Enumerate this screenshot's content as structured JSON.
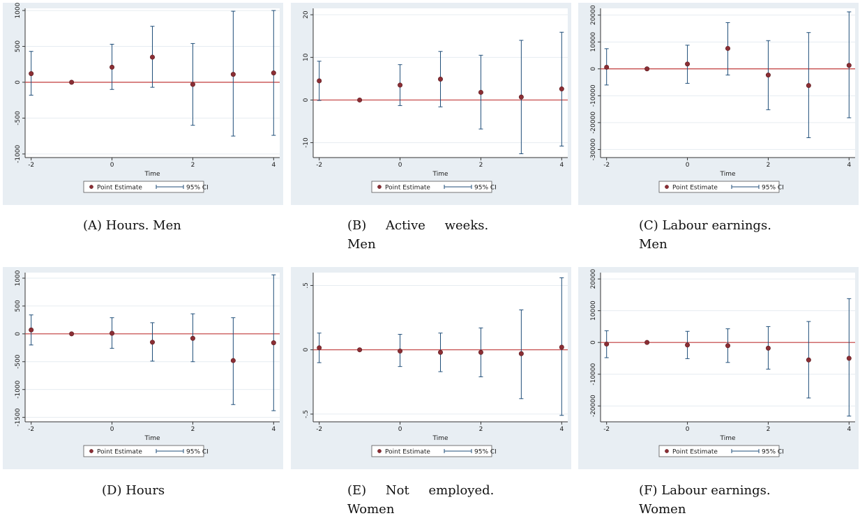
{
  "style": {
    "outer_bg": "#e8eef3",
    "plot_bg": "#ffffff",
    "grid": "#e6ecf1",
    "zero_line": "#c23b3b",
    "ci_line": "#1f4e79",
    "point": "#8b2e34",
    "point_edge": "#5a1a1f"
  },
  "legend": {
    "point_label": "Point Estimate",
    "ci_label": "95% CI"
  },
  "chart_data": [
    {
      "type": "scatter",
      "caption": "(A) Hours. Men",
      "xlabel": "Time",
      "x_ticks": [
        -2,
        0,
        2,
        4
      ],
      "y_ticks": [
        -1000,
        -500,
        0,
        500,
        1000
      ],
      "y_tick_labels": [
        "-1000",
        "-500",
        "0",
        "500",
        "1000"
      ],
      "ylim": [
        -1050,
        1030
      ],
      "x": [
        -2,
        -1,
        0,
        1,
        2,
        3,
        4
      ],
      "estimate": [
        120,
        0,
        210,
        350,
        -30,
        110,
        130
      ],
      "ci_low": [
        -180,
        null,
        -100,
        -70,
        -600,
        -750,
        -740
      ],
      "ci_high": [
        430,
        null,
        530,
        780,
        540,
        990,
        1000
      ],
      "grid": true
    },
    {
      "type": "scatter",
      "caption": "(B) Active weeks. Men",
      "xlabel": "Time",
      "x_ticks": [
        -2,
        0,
        2,
        4
      ],
      "y_ticks": [
        -10,
        0,
        10,
        20
      ],
      "y_tick_labels": [
        "-10",
        "0",
        "10",
        "20"
      ],
      "ylim": [
        -13.5,
        21.5
      ],
      "x": [
        -2,
        -1,
        0,
        1,
        2,
        3,
        4
      ],
      "estimate": [
        4.5,
        0,
        3.5,
        4.9,
        1.8,
        0.7,
        2.6
      ],
      "ci_low": [
        -0.1,
        null,
        -1.3,
        -1.6,
        -6.8,
        -12.6,
        -10.8
      ],
      "ci_high": [
        9.1,
        null,
        8.3,
        11.4,
        10.5,
        14.0,
        15.9
      ],
      "grid": true
    },
    {
      "type": "scatter",
      "caption": "(C) Labour earnings. Men",
      "xlabel": "Time",
      "x_ticks": [
        -2,
        0,
        2,
        4
      ],
      "y_ticks": [
        -30000,
        -20000,
        -10000,
        0,
        10000,
        20000
      ],
      "y_tick_labels": [
        "-30000",
        "-20000",
        "-10000",
        "0",
        "10000",
        "20000"
      ],
      "ylim": [
        -33000,
        22500
      ],
      "x": [
        -2,
        -1,
        0,
        1,
        2,
        3,
        4
      ],
      "estimate": [
        600,
        0,
        1800,
        7600,
        -2300,
        -6200,
        1300
      ],
      "ci_low": [
        -6000,
        null,
        -5400,
        -2300,
        -15200,
        -25600,
        -18200
      ],
      "ci_high": [
        7500,
        null,
        8800,
        17200,
        10500,
        13500,
        21200
      ],
      "grid": true
    },
    {
      "type": "scatter",
      "caption": "(D) Hours",
      "xlabel": "Time",
      "x_ticks": [
        -2,
        0,
        2,
        4
      ],
      "y_ticks": [
        -1500,
        -1000,
        -500,
        0,
        500,
        1000
      ],
      "y_tick_labels": [
        "-1500",
        "-1000",
        "-500",
        "0",
        "500",
        "1000"
      ],
      "ylim": [
        -1580,
        1100
      ],
      "x": [
        -2,
        -1,
        0,
        1,
        2,
        3,
        4
      ],
      "estimate": [
        70,
        0,
        10,
        -150,
        -80,
        -480,
        -160
      ],
      "ci_low": [
        -200,
        null,
        -260,
        -490,
        -500,
        -1270,
        -1380
      ],
      "ci_high": [
        340,
        null,
        290,
        200,
        360,
        290,
        1060
      ],
      "grid": true
    },
    {
      "type": "scatter",
      "caption": "(E) Not employed. Women",
      "xlabel": "Time",
      "x_ticks": [
        -2,
        0,
        2,
        4
      ],
      "y_ticks": [
        -0.5,
        0,
        0.5
      ],
      "y_tick_labels": [
        "-.5",
        "0",
        ".5"
      ],
      "ylim": [
        -0.56,
        0.6
      ],
      "x": [
        -2,
        -1,
        0,
        1,
        2,
        3,
        4
      ],
      "estimate": [
        0.015,
        0,
        -0.01,
        -0.02,
        -0.02,
        -0.03,
        0.02
      ],
      "ci_low": [
        -0.1,
        null,
        -0.13,
        -0.17,
        -0.21,
        -0.38,
        -0.51
      ],
      "ci_high": [
        0.13,
        null,
        0.12,
        0.13,
        0.17,
        0.31,
        0.56
      ],
      "grid": true
    },
    {
      "type": "scatter",
      "caption": "(F) Labour earnings. Women",
      "xlabel": "Time",
      "x_ticks": [
        -2,
        0,
        2,
        4
      ],
      "y_ticks": [
        -20000,
        -10000,
        0,
        10000,
        20000
      ],
      "y_tick_labels": [
        "-20000",
        "-10000",
        "0",
        "10000",
        "20000"
      ],
      "ylim": [
        -25000,
        22000
      ],
      "x": [
        -2,
        -1,
        0,
        1,
        2,
        3,
        4
      ],
      "estimate": [
        -500,
        0,
        -800,
        -1000,
        -1800,
        -5500,
        -5000
      ],
      "ci_low": [
        -4800,
        null,
        -5100,
        -6300,
        -8400,
        -17500,
        -23200
      ],
      "ci_high": [
        3700,
        null,
        3500,
        4300,
        5000,
        6600,
        13800
      ],
      "grid": true
    }
  ]
}
